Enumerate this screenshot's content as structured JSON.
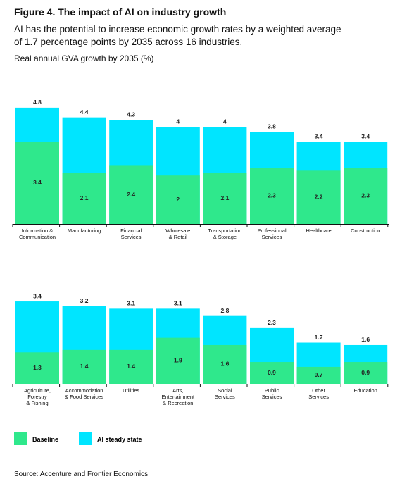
{
  "header": {
    "title": "Figure 4. The impact of AI on industry growth",
    "subtitle": "AI has the potential to increase economic growth rates by a weighted average\nof 1.7 percentage points by 2035 across 16 industries.",
    "y_label": "Real annual GVA growth by 2035 (%)"
  },
  "chart_data": {
    "type": "bar",
    "categories": [
      "Information &\nCommunication",
      "Manufacturing",
      "Financial\nServices",
      "Wholesale\n& Retail",
      "Transportation\n& Storage",
      "Professional\nServices",
      "Healthcare",
      "Construction",
      "Agriculture,\nForestry\n& Fishing",
      "Accommodation\n& Food Services",
      "Utilities",
      "Arts,\nEntertainment\n& Recreation",
      "Social\nServices",
      "Public\nServices",
      "Other\nServices",
      "Education"
    ],
    "series": [
      {
        "name": "AI steady state",
        "color": "#00e5ff",
        "values": [
          4.8,
          4.4,
          4.3,
          4.0,
          4.0,
          3.8,
          3.4,
          3.4,
          3.4,
          3.2,
          3.1,
          3.1,
          2.8,
          2.3,
          1.7,
          1.6
        ]
      },
      {
        "name": "Baseline",
        "color": "#2fe88c",
        "values": [
          3.4,
          2.1,
          2.4,
          2.0,
          2.1,
          2.3,
          2.2,
          2.3,
          1.3,
          1.4,
          1.4,
          1.9,
          1.6,
          0.9,
          0.7,
          0.9
        ]
      }
    ],
    "ylim": [
      0,
      5
    ]
  },
  "source": "Source: Accenture and Frontier Economics"
}
